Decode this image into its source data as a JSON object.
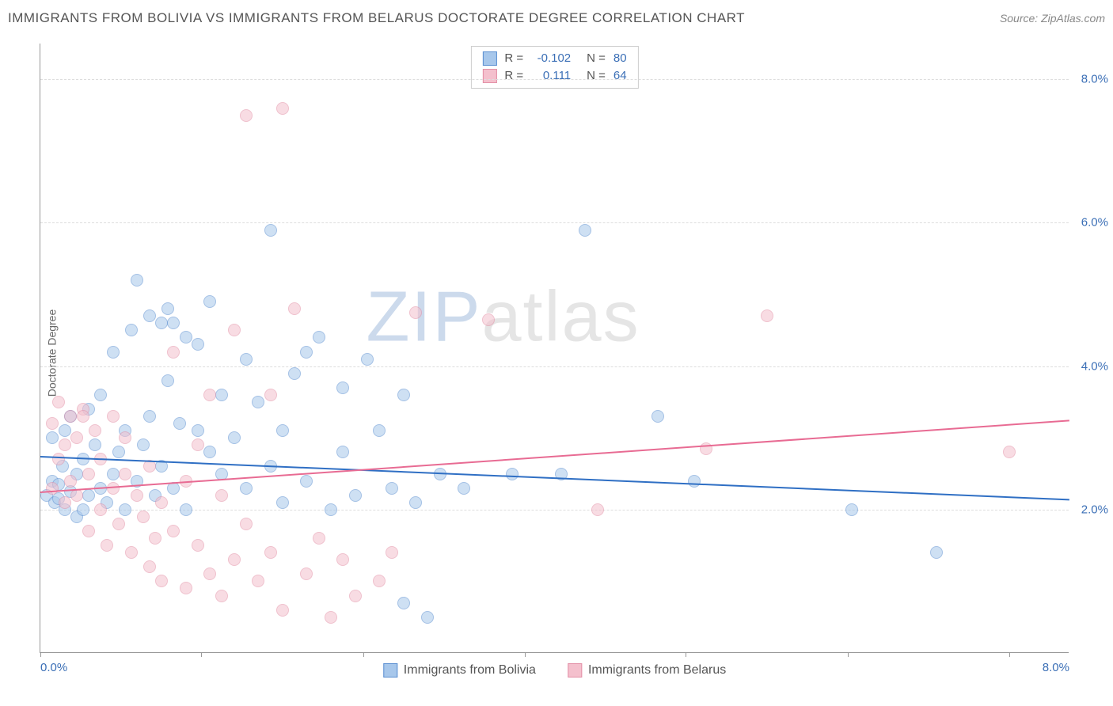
{
  "title": "IMMIGRANTS FROM BOLIVIA VS IMMIGRANTS FROM BELARUS DOCTORATE DEGREE CORRELATION CHART",
  "source": "Source: ZipAtlas.com",
  "y_axis_label": "Doctorate Degree",
  "watermark": {
    "z": "ZIP",
    "rest": "atlas"
  },
  "chart": {
    "type": "scatter-with-regression",
    "xlim": [
      0,
      8.5
    ],
    "ylim": [
      0,
      8.5
    ],
    "yticks": [
      2.0,
      4.0,
      6.0,
      8.0
    ],
    "ytick_labels": [
      "2.0%",
      "4.0%",
      "6.0%",
      "8.0%"
    ],
    "xticks": [
      0,
      1.33,
      2.67,
      4.0,
      5.33,
      6.67,
      8.0
    ],
    "xtick_labels_shown": {
      "first": "0.0%",
      "last": "8.0%"
    },
    "background_color": "#ffffff",
    "grid_color": "#dddddd",
    "axis_color": "#999999",
    "point_radius": 8,
    "point_opacity": 0.55,
    "series": [
      {
        "name": "Immigrants from Bolivia",
        "color_fill": "#a7c7eb",
        "color_stroke": "#5b8fd1",
        "line_color": "#2f6fc4",
        "R": "-0.102",
        "N": "80",
        "regression": {
          "x1": 0,
          "y1": 2.75,
          "x2": 8.5,
          "y2": 2.15
        },
        "points": [
          [
            0.05,
            2.2
          ],
          [
            0.1,
            2.4
          ],
          [
            0.1,
            3.0
          ],
          [
            0.12,
            2.1
          ],
          [
            0.15,
            2.35
          ],
          [
            0.18,
            2.6
          ],
          [
            0.2,
            2.0
          ],
          [
            0.2,
            3.1
          ],
          [
            0.25,
            2.25
          ],
          [
            0.25,
            3.3
          ],
          [
            0.3,
            2.5
          ],
          [
            0.3,
            1.9
          ],
          [
            0.35,
            2.0
          ],
          [
            0.35,
            2.7
          ],
          [
            0.4,
            2.2
          ],
          [
            0.4,
            3.4
          ],
          [
            0.45,
            2.9
          ],
          [
            0.5,
            2.3
          ],
          [
            0.5,
            3.6
          ],
          [
            0.55,
            2.1
          ],
          [
            0.6,
            2.5
          ],
          [
            0.6,
            4.2
          ],
          [
            0.65,
            2.8
          ],
          [
            0.7,
            2.0
          ],
          [
            0.7,
            3.1
          ],
          [
            0.75,
            4.5
          ],
          [
            0.8,
            2.4
          ],
          [
            0.8,
            5.2
          ],
          [
            0.85,
            2.9
          ],
          [
            0.9,
            3.3
          ],
          [
            0.9,
            4.7
          ],
          [
            0.95,
            2.2
          ],
          [
            1.0,
            4.6
          ],
          [
            1.0,
            2.6
          ],
          [
            1.05,
            3.8
          ],
          [
            1.05,
            4.8
          ],
          [
            1.1,
            2.3
          ],
          [
            1.1,
            4.6
          ],
          [
            1.15,
            3.2
          ],
          [
            1.2,
            2.0
          ],
          [
            1.2,
            4.4
          ],
          [
            1.3,
            3.1
          ],
          [
            1.3,
            4.3
          ],
          [
            1.4,
            2.8
          ],
          [
            1.4,
            4.9
          ],
          [
            1.5,
            2.5
          ],
          [
            1.5,
            3.6
          ],
          [
            1.6,
            3.0
          ],
          [
            1.7,
            4.1
          ],
          [
            1.7,
            2.3
          ],
          [
            1.8,
            3.5
          ],
          [
            1.9,
            2.6
          ],
          [
            1.9,
            5.9
          ],
          [
            2.0,
            3.1
          ],
          [
            2.0,
            2.1
          ],
          [
            2.1,
            3.9
          ],
          [
            2.2,
            2.4
          ],
          [
            2.2,
            4.2
          ],
          [
            2.3,
            4.4
          ],
          [
            2.4,
            2.0
          ],
          [
            2.5,
            2.8
          ],
          [
            2.5,
            3.7
          ],
          [
            2.6,
            2.2
          ],
          [
            2.7,
            4.1
          ],
          [
            2.8,
            3.1
          ],
          [
            2.9,
            2.3
          ],
          [
            3.0,
            3.6
          ],
          [
            3.0,
            0.7
          ],
          [
            3.1,
            2.1
          ],
          [
            3.2,
            0.5
          ],
          [
            3.3,
            2.5
          ],
          [
            3.5,
            2.3
          ],
          [
            3.9,
            2.5
          ],
          [
            4.3,
            2.5
          ],
          [
            4.5,
            5.9
          ],
          [
            5.1,
            3.3
          ],
          [
            5.4,
            2.4
          ],
          [
            6.7,
            2.0
          ],
          [
            7.4,
            1.4
          ],
          [
            0.15,
            2.15
          ]
        ]
      },
      {
        "name": "Immigrants from Belarus",
        "color_fill": "#f4c0cd",
        "color_stroke": "#e38fa6",
        "line_color": "#e86b93",
        "R": "0.111",
        "N": "64",
        "regression": {
          "x1": 0,
          "y1": 2.25,
          "x2": 8.5,
          "y2": 3.25
        },
        "points": [
          [
            0.1,
            2.3
          ],
          [
            0.1,
            3.2
          ],
          [
            0.15,
            2.7
          ],
          [
            0.15,
            3.5
          ],
          [
            0.2,
            2.1
          ],
          [
            0.2,
            2.9
          ],
          [
            0.25,
            3.3
          ],
          [
            0.25,
            2.4
          ],
          [
            0.3,
            3.0
          ],
          [
            0.3,
            2.2
          ],
          [
            0.35,
            3.4
          ],
          [
            0.4,
            2.5
          ],
          [
            0.4,
            1.7
          ],
          [
            0.45,
            3.1
          ],
          [
            0.5,
            2.0
          ],
          [
            0.5,
            2.7
          ],
          [
            0.55,
            1.5
          ],
          [
            0.6,
            3.3
          ],
          [
            0.6,
            2.3
          ],
          [
            0.65,
            1.8
          ],
          [
            0.7,
            2.5
          ],
          [
            0.7,
            3.0
          ],
          [
            0.75,
            1.4
          ],
          [
            0.8,
            2.2
          ],
          [
            0.85,
            1.9
          ],
          [
            0.9,
            2.6
          ],
          [
            0.9,
            1.2
          ],
          [
            0.95,
            1.6
          ],
          [
            1.0,
            2.1
          ],
          [
            1.0,
            1.0
          ],
          [
            1.1,
            1.7
          ],
          [
            1.1,
            4.2
          ],
          [
            1.2,
            2.4
          ],
          [
            1.2,
            0.9
          ],
          [
            1.3,
            1.5
          ],
          [
            1.3,
            2.9
          ],
          [
            1.4,
            1.1
          ],
          [
            1.4,
            3.6
          ],
          [
            1.5,
            0.8
          ],
          [
            1.5,
            2.2
          ],
          [
            1.6,
            4.5
          ],
          [
            1.6,
            1.3
          ],
          [
            1.7,
            7.5
          ],
          [
            1.7,
            1.8
          ],
          [
            1.8,
            1.0
          ],
          [
            1.9,
            3.6
          ],
          [
            1.9,
            1.4
          ],
          [
            2.0,
            7.6
          ],
          [
            2.0,
            0.6
          ],
          [
            2.1,
            4.8
          ],
          [
            2.2,
            1.1
          ],
          [
            2.3,
            1.6
          ],
          [
            2.4,
            0.5
          ],
          [
            2.5,
            1.3
          ],
          [
            2.6,
            0.8
          ],
          [
            2.8,
            1.0
          ],
          [
            2.9,
            1.4
          ],
          [
            3.1,
            4.75
          ],
          [
            3.7,
            4.65
          ],
          [
            4.6,
            2.0
          ],
          [
            5.5,
            2.85
          ],
          [
            6.0,
            4.7
          ],
          [
            8.0,
            2.8
          ],
          [
            0.35,
            3.3
          ]
        ]
      }
    ]
  },
  "legend_bottom": [
    {
      "label": "Immigrants from Bolivia",
      "fill": "#a7c7eb",
      "stroke": "#5b8fd1"
    },
    {
      "label": "Immigrants from Belarus",
      "fill": "#f4c0cd",
      "stroke": "#e38fa6"
    }
  ]
}
